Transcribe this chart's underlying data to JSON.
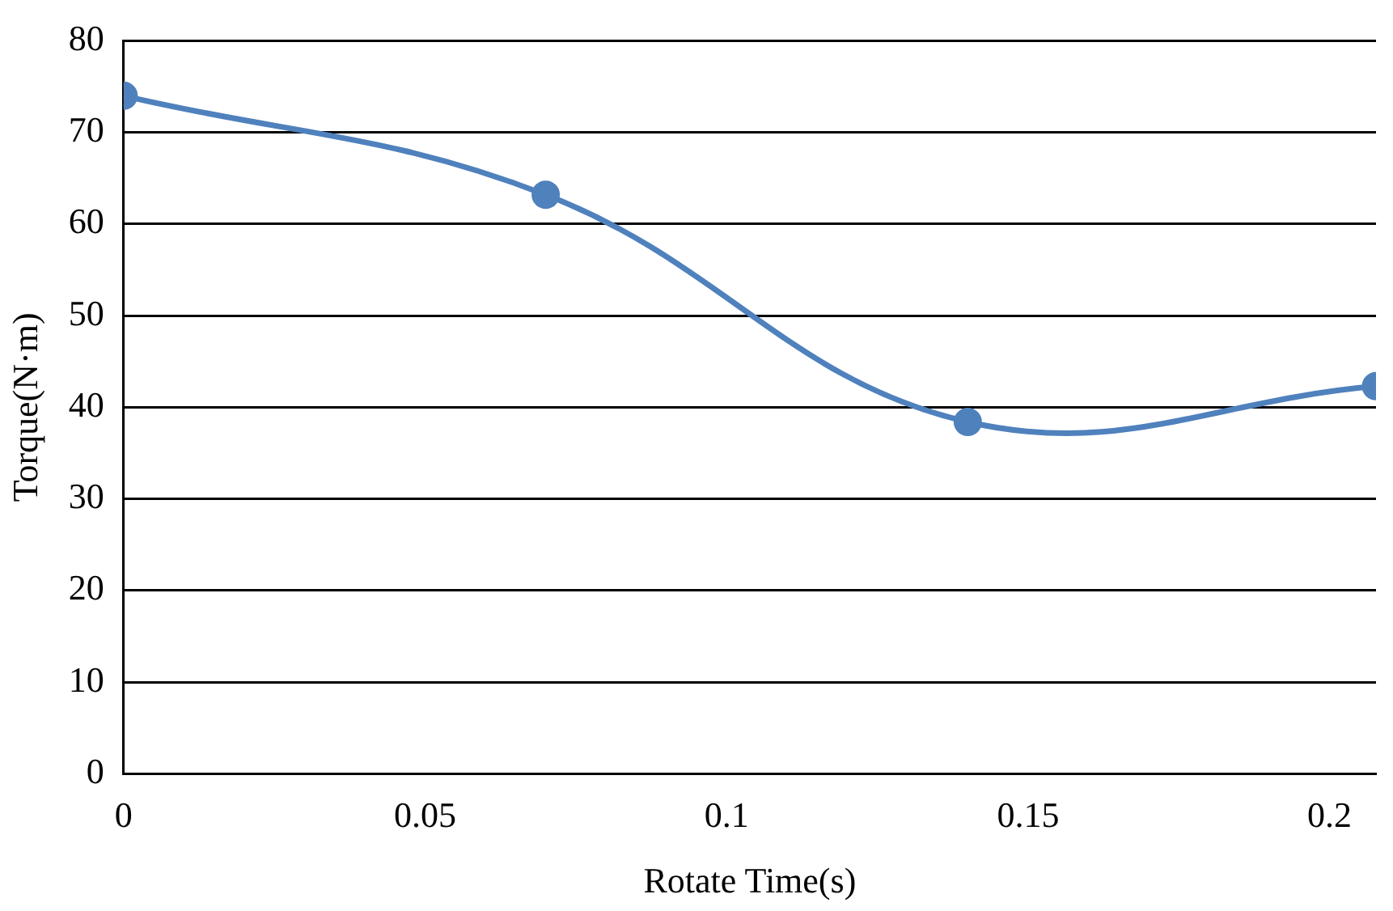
{
  "chart_data": {
    "type": "line",
    "xlabel": "Rotate Time(s)",
    "ylabel": "Torque(N·m)",
    "x": [
      0,
      0.07,
      0.14,
      0.2077
    ],
    "series": [
      {
        "color": "#4f81bd",
        "values": [
          74,
          63.2,
          38.4,
          42.3
        ]
      }
    ],
    "xlim": [
      0,
      0.2077
    ],
    "xticks": [
      0,
      0.05,
      0.1,
      0.15,
      0.2
    ],
    "ylim": [
      0,
      80
    ],
    "yticks": [
      0,
      10,
      20,
      30,
      40,
      50,
      60,
      70,
      80
    ],
    "grid": "y",
    "legend": false,
    "marker": "circle",
    "line_style": "solid"
  }
}
